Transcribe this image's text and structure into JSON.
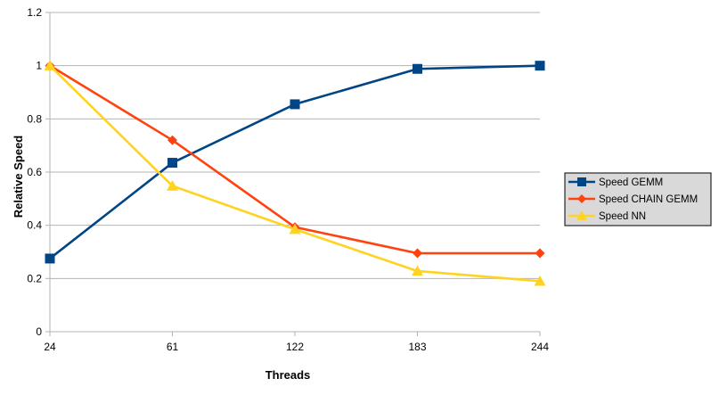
{
  "chart_data": {
    "type": "line",
    "title": "",
    "xlabel": "Threads",
    "ylabel": "Relative Speed",
    "categories": [
      "24",
      "61",
      "122",
      "183",
      "244"
    ],
    "ylim": [
      0,
      1.2
    ],
    "yticks": [
      "0",
      "0.2",
      "0.4",
      "0.6",
      "0.8",
      "1",
      "1.2"
    ],
    "ytick_values": [
      0,
      0.2,
      0.4,
      0.6,
      0.8,
      1.0,
      1.2
    ],
    "grid": true,
    "legend_position": "right",
    "series": [
      {
        "name": "Speed GEMM",
        "values": [
          0.275,
          0.635,
          0.855,
          0.988,
          1.0
        ],
        "color": "#004586",
        "marker": "square"
      },
      {
        "name": "Speed CHAIN GEMM",
        "values": [
          1.0,
          0.72,
          0.393,
          0.295,
          0.295
        ],
        "color": "#ff420e",
        "marker": "diamond"
      },
      {
        "name": "Speed NN",
        "values": [
          1.0,
          0.548,
          0.385,
          0.228,
          0.19
        ],
        "color": "#ffd320",
        "marker": "triangle"
      }
    ],
    "legend_background": "#d9d9d9",
    "gridline_color": "#b3b3b3"
  }
}
